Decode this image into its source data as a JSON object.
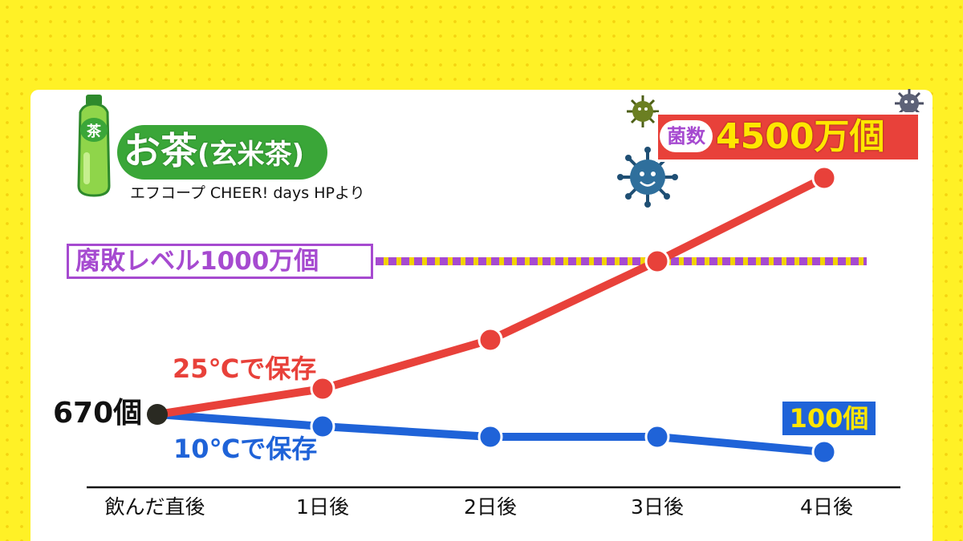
{
  "header": {
    "title": "お茶",
    "subtitle": "(玄米茶)",
    "source": "エフコープ CHEER! days HPより"
  },
  "threshold": {
    "label": "腐敗レベル1000万個",
    "value": 10000000,
    "color": "#a64ad0"
  },
  "callouts": {
    "max_tag": "菌数",
    "max_value": "4500万個",
    "end_value": "100個",
    "start_value": "670個"
  },
  "icons": {
    "bottle": "green-tea-bottle-icon",
    "germs": "germ-icon"
  },
  "colors": {
    "series_25": "#e8413a",
    "series_10": "#1f63d8",
    "start_point": "#2a2a22",
    "background": "#fff126"
  },
  "chart_data": {
    "type": "line",
    "categories": [
      "飲んだ直後",
      "1日後",
      "2日後",
      "3日後",
      "4日後"
    ],
    "series": [
      {
        "name": "25℃で保存",
        "values": [
          670,
          1500000,
          4000000,
          10000000,
          45000000
        ]
      },
      {
        "name": "10℃で保存",
        "values": [
          670,
          400,
          250,
          250,
          100
        ]
      }
    ],
    "threshold": 10000000,
    "ylim": [
      0,
      45000000
    ],
    "grid": false
  }
}
